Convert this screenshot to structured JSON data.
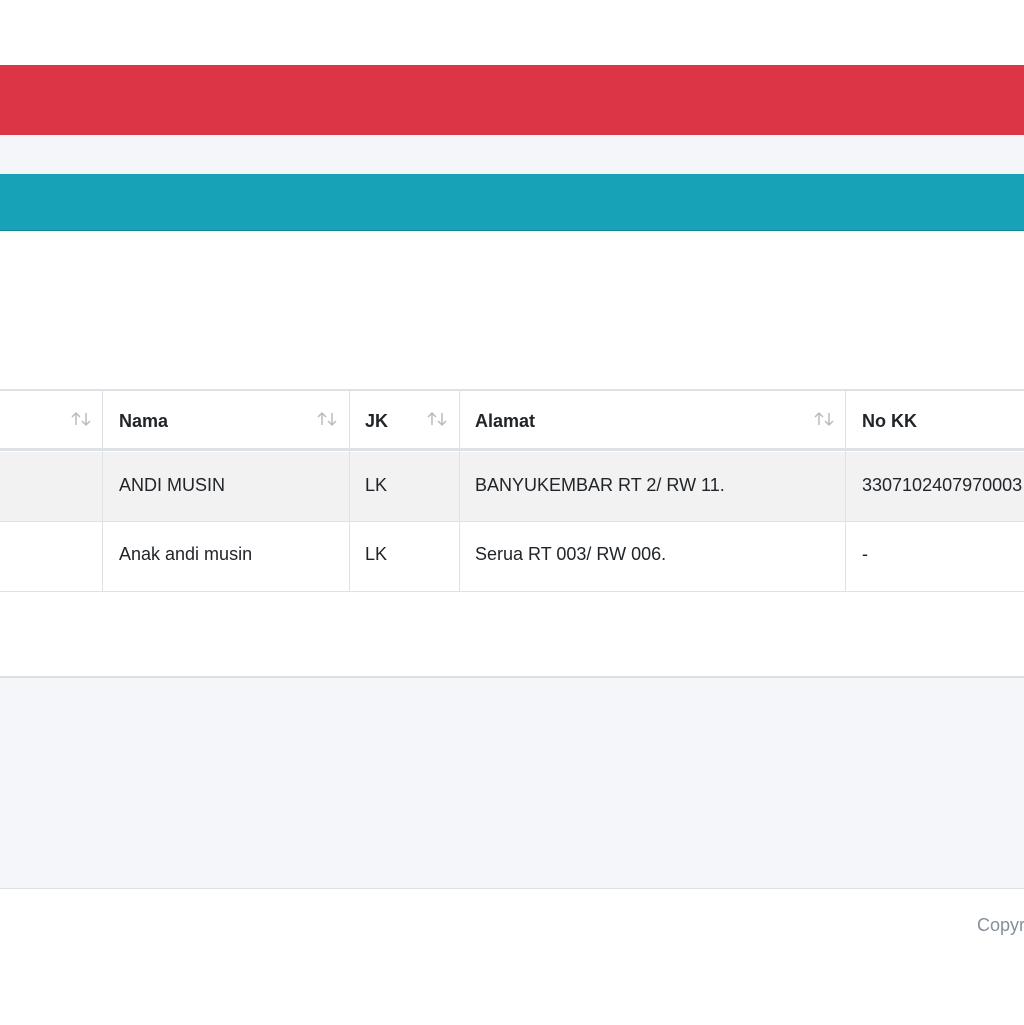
{
  "table": {
    "header": [
      "Nama",
      "JK",
      "Alamat",
      "No KK"
    ],
    "rows": [
      [
        "ANDI MUSIN",
        "LK",
        "BANYUKEMBAR RT 2/ RW 11.",
        "3307102407970003"
      ],
      [
        "Anak andi musin",
        "LK",
        "Serua RT 003/ RW 006.",
        "-"
      ]
    ]
  },
  "footer": {
    "text": "Copyr"
  }
}
